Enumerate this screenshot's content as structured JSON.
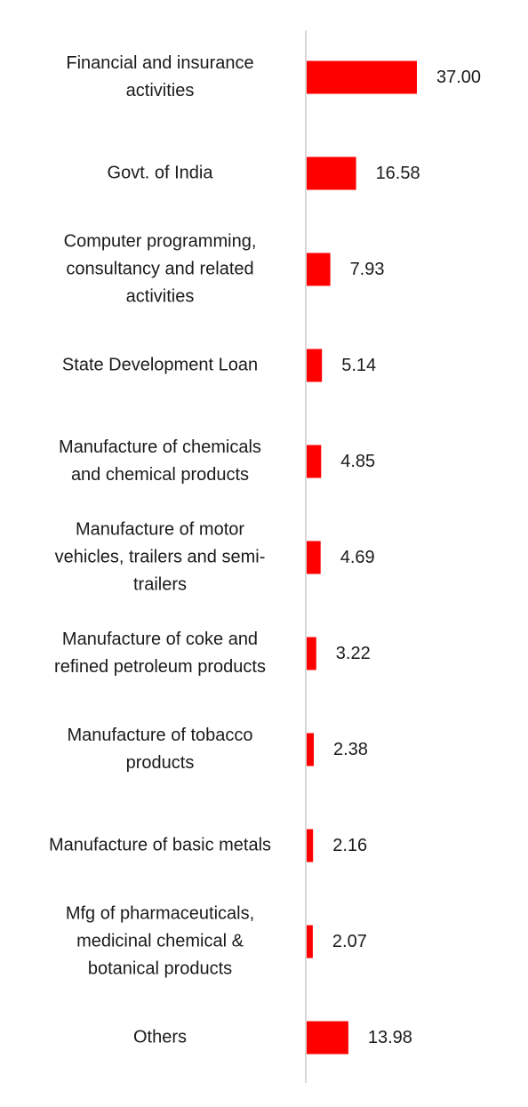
{
  "chart_data": {
    "type": "bar",
    "orientation": "horizontal",
    "categories": [
      "Financial and insurance\nactivities",
      "Govt. of India",
      "Computer programming,\nconsultancy and related\nactivities",
      "State Development Loan",
      "Manufacture of chemicals\nand chemical products",
      "Manufacture of motor\nvehicles, trailers and semi-\ntrailers",
      "Manufacture of coke and\nrefined petroleum products",
      "Manufacture of tobacco\nproducts",
      "Manufacture of basic metals",
      "Mfg of pharmaceuticals,\nmedicinal chemical &\nbotanical products",
      "Others"
    ],
    "values": [
      37.0,
      16.58,
      7.93,
      5.14,
      4.85,
      4.69,
      3.22,
      2.38,
      2.16,
      2.07,
      13.98
    ],
    "value_labels": [
      "37.00",
      "16.58",
      "7.93",
      "5.14",
      "4.85",
      "4.69",
      "3.22",
      "2.38",
      "2.16",
      "2.07",
      "13.98"
    ],
    "bar_color": "#ff0000",
    "axis_color": "#d9d9d9",
    "xlim": [
      0,
      37
    ],
    "grid": false,
    "legend": "none"
  }
}
